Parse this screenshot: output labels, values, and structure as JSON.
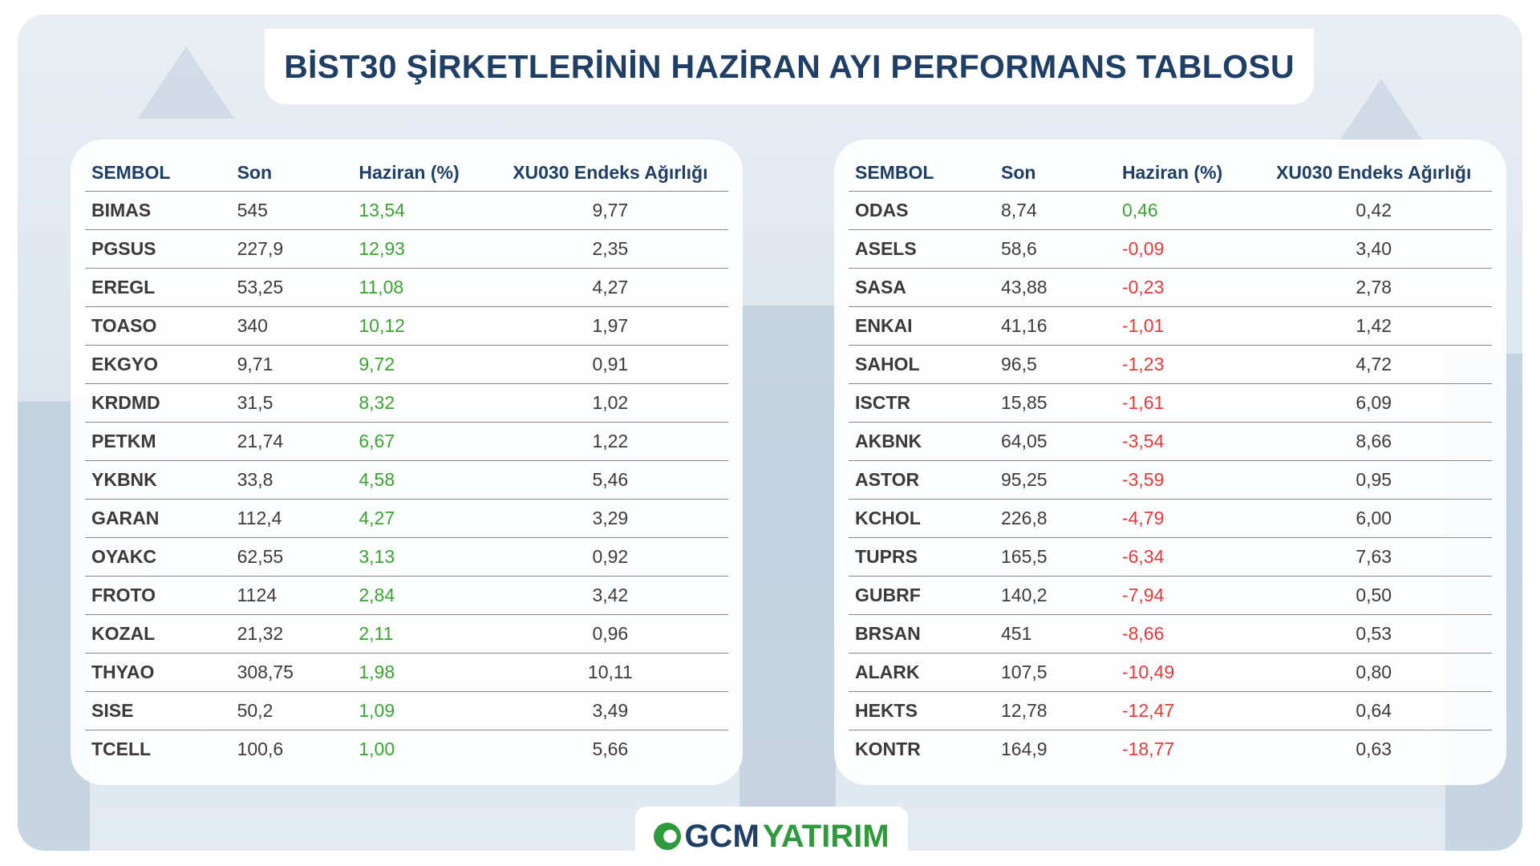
{
  "title": "BİST30 ŞİRKETLERİNİN HAZİRAN AYI PERFORMANS TABLOSU",
  "columns": [
    "SEMBOL",
    "Son",
    "Haziran (%)",
    "XU030 Endeks Ağırlığı"
  ],
  "left_table": [
    {
      "symbol": "BIMAS",
      "last": "545",
      "june": "13,54",
      "weight": "9,77",
      "dir": "pos"
    },
    {
      "symbol": "PGSUS",
      "last": "227,9",
      "june": "12,93",
      "weight": "2,35",
      "dir": "pos"
    },
    {
      "symbol": "EREGL",
      "last": "53,25",
      "june": "11,08",
      "weight": "4,27",
      "dir": "pos"
    },
    {
      "symbol": "TOASO",
      "last": "340",
      "june": "10,12",
      "weight": "1,97",
      "dir": "pos"
    },
    {
      "symbol": "EKGYO",
      "last": "9,71",
      "june": "9,72",
      "weight": "0,91",
      "dir": "pos"
    },
    {
      "symbol": "KRDMD",
      "last": "31,5",
      "june": "8,32",
      "weight": "1,02",
      "dir": "pos"
    },
    {
      "symbol": "PETKM",
      "last": "21,74",
      "june": "6,67",
      "weight": "1,22",
      "dir": "pos"
    },
    {
      "symbol": "YKBNK",
      "last": "33,8",
      "june": "4,58",
      "weight": "5,46",
      "dir": "pos"
    },
    {
      "symbol": "GARAN",
      "last": "112,4",
      "june": "4,27",
      "weight": "3,29",
      "dir": "pos"
    },
    {
      "symbol": "OYAKC",
      "last": "62,55",
      "june": "3,13",
      "weight": "0,92",
      "dir": "pos"
    },
    {
      "symbol": "FROTO",
      "last": "1124",
      "june": "2,84",
      "weight": "3,42",
      "dir": "pos"
    },
    {
      "symbol": "KOZAL",
      "last": "21,32",
      "june": "2,11",
      "weight": "0,96",
      "dir": "pos"
    },
    {
      "symbol": "THYAO",
      "last": "308,75",
      "june": "1,98",
      "weight": "10,11",
      "dir": "pos"
    },
    {
      "symbol": "SISE",
      "last": "50,2",
      "june": "1,09",
      "weight": "3,49",
      "dir": "pos"
    },
    {
      "symbol": "TCELL",
      "last": "100,6",
      "june": "1,00",
      "weight": "5,66",
      "dir": "pos"
    }
  ],
  "right_table": [
    {
      "symbol": "ODAS",
      "last": "8,74",
      "june": "0,46",
      "weight": "0,42",
      "dir": "pos"
    },
    {
      "symbol": "ASELS",
      "last": "58,6",
      "june": "-0,09",
      "weight": "3,40",
      "dir": "neg"
    },
    {
      "symbol": "SASA",
      "last": "43,88",
      "june": "-0,23",
      "weight": "2,78",
      "dir": "neg"
    },
    {
      "symbol": "ENKAI",
      "last": "41,16",
      "june": "-1,01",
      "weight": "1,42",
      "dir": "neg"
    },
    {
      "symbol": "SAHOL",
      "last": "96,5",
      "june": "-1,23",
      "weight": "4,72",
      "dir": "neg"
    },
    {
      "symbol": "ISCTR",
      "last": "15,85",
      "june": "-1,61",
      "weight": "6,09",
      "dir": "neg"
    },
    {
      "symbol": "AKBNK",
      "last": "64,05",
      "june": "-3,54",
      "weight": "8,66",
      "dir": "neg"
    },
    {
      "symbol": "ASTOR",
      "last": "95,25",
      "june": "-3,59",
      "weight": "0,95",
      "dir": "neg"
    },
    {
      "symbol": "KCHOL",
      "last": "226,8",
      "june": "-4,79",
      "weight": "6,00",
      "dir": "neg"
    },
    {
      "symbol": "TUPRS",
      "last": "165,5",
      "june": "-6,34",
      "weight": "7,63",
      "dir": "neg"
    },
    {
      "symbol": "GUBRF",
      "last": "140,2",
      "june": "-7,94",
      "weight": "0,50",
      "dir": "neg"
    },
    {
      "symbol": "BRSAN",
      "last": "451",
      "june": "-8,66",
      "weight": "0,53",
      "dir": "neg"
    },
    {
      "symbol": "ALARK",
      "last": "107,5",
      "june": "-10,49",
      "weight": "0,80",
      "dir": "neg"
    },
    {
      "symbol": "HEKTS",
      "last": "12,78",
      "june": "-12,47",
      "weight": "0,64",
      "dir": "neg"
    },
    {
      "symbol": "KONTR",
      "last": "164,9",
      "june": "-18,77",
      "weight": "0,63",
      "dir": "neg"
    }
  ],
  "colors": {
    "positive": "#3aa531",
    "negative": "#e53a3a",
    "heading": "#1f3f66",
    "brand_green": "#2e9a3b"
  },
  "logo": {
    "gcm": "GCM",
    "yatirim": "YATIRIM",
    "icon": "gcm-globe-icon"
  }
}
